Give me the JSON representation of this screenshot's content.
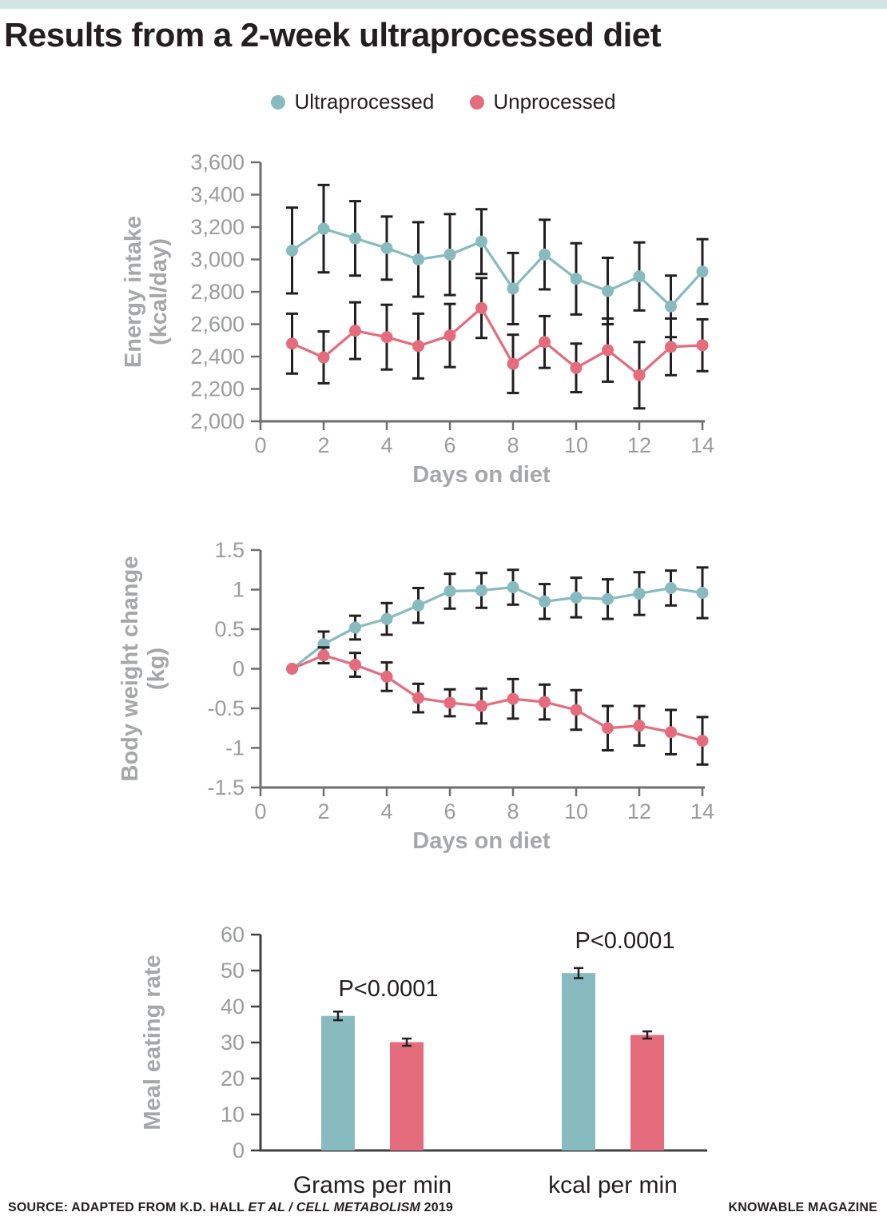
{
  "page": {
    "title": "Results from a 2-week ultraprocessed diet",
    "accent_bar_color": "#D2E5E4",
    "footer": {
      "source_prefix": "SOURCE: ADAPTED FROM K.D. HALL ",
      "source_italic": "ET AL / CELL METABOLISM",
      "source_suffix": " 2019",
      "credit": "KNOWABLE MAGAZINE"
    }
  },
  "colors": {
    "ultraprocessed": "#87BBBF",
    "unprocessed": "#E46C7C",
    "error_bar": "#231F20",
    "axis": "#6D6E71",
    "axis_dark": "#414042"
  },
  "legend": {
    "items": [
      {
        "label": "Ultraprocessed",
        "color": "#87BBBF"
      },
      {
        "label": "Unprocessed",
        "color": "#E46C7C"
      }
    ]
  },
  "chart_data": [
    {
      "type": "line",
      "name": "energy-intake",
      "ylabel": [
        "Energy intake",
        "(kcal/day)"
      ],
      "xlabel": "Days on diet",
      "xlim": [
        0,
        14
      ],
      "ylim": [
        2000,
        3600
      ],
      "x": [
        1,
        2,
        3,
        4,
        5,
        6,
        7,
        8,
        9,
        10,
        11,
        12,
        13,
        14
      ],
      "xticks": [
        0,
        2,
        4,
        6,
        8,
        10,
        12,
        14
      ],
      "yticks": [
        {
          "v": 2000,
          "label": "2,000"
        },
        {
          "v": 2200,
          "label": "2,200"
        },
        {
          "v": 2400,
          "label": "2,400"
        },
        {
          "v": 2600,
          "label": "2,600"
        },
        {
          "v": 2800,
          "label": "2,800"
        },
        {
          "v": 3000,
          "label": "3,000"
        },
        {
          "v": 3200,
          "label": "3,200"
        },
        {
          "v": 3400,
          "label": "3,400"
        },
        {
          "v": 3600,
          "label": "3,600"
        }
      ],
      "series": [
        {
          "name": "Ultraprocessed",
          "color": "#87BBBF",
          "values": [
            3055,
            3190,
            3130,
            3070,
            3000,
            3030,
            3110,
            2820,
            3030,
            2880,
            2805,
            2895,
            2710,
            2925
          ],
          "errors": [
            265,
            270,
            230,
            195,
            230,
            250,
            200,
            220,
            215,
            220,
            205,
            210,
            190,
            200
          ]
        },
        {
          "name": "Unprocessed",
          "color": "#E46C7C",
          "values": [
            2480,
            2395,
            2560,
            2520,
            2465,
            2530,
            2700,
            2355,
            2490,
            2330,
            2440,
            2285,
            2460,
            2470
          ],
          "errors": [
            185,
            160,
            175,
            200,
            200,
            195,
            185,
            180,
            160,
            150,
            195,
            205,
            175,
            160
          ]
        }
      ]
    },
    {
      "type": "line",
      "name": "body-weight-change",
      "ylabel": [
        "Body weight change",
        "(kg)"
      ],
      "xlabel": "Days on diet",
      "xlim": [
        0,
        14
      ],
      "ylim": [
        -1.5,
        1.5
      ],
      "x": [
        1,
        2,
        3,
        4,
        5,
        6,
        7,
        8,
        9,
        10,
        11,
        12,
        13,
        14
      ],
      "xticks": [
        0,
        2,
        4,
        6,
        8,
        10,
        12,
        14
      ],
      "yticks": [
        {
          "v": -1.5,
          "label": "-1.5"
        },
        {
          "v": -1,
          "label": "-1"
        },
        {
          "v": -0.5,
          "label": "-0.5"
        },
        {
          "v": 0,
          "label": "0"
        },
        {
          "v": 0.5,
          "label": "0.5"
        },
        {
          "v": 1,
          "label": "1"
        },
        {
          "v": 1.5,
          "label": "1.5"
        }
      ],
      "series": [
        {
          "name": "Ultraprocessed",
          "color": "#87BBBF",
          "values": [
            0,
            0.31,
            0.52,
            0.63,
            0.8,
            0.98,
            0.99,
            1.03,
            0.85,
            0.9,
            0.88,
            0.95,
            1.02,
            0.96
          ],
          "errors": [
            0,
            0.16,
            0.15,
            0.2,
            0.22,
            0.22,
            0.22,
            0.22,
            0.22,
            0.25,
            0.25,
            0.27,
            0.22,
            0.32
          ]
        },
        {
          "name": "Unprocessed",
          "color": "#E46C7C",
          "values": [
            0,
            0.17,
            0.05,
            -0.1,
            -0.37,
            -0.43,
            -0.47,
            -0.38,
            -0.42,
            -0.52,
            -0.75,
            -0.72,
            -0.8,
            -0.91
          ],
          "errors": [
            0,
            0.1,
            0.15,
            0.18,
            0.18,
            0.17,
            0.22,
            0.25,
            0.22,
            0.25,
            0.28,
            0.25,
            0.28,
            0.3
          ]
        }
      ]
    },
    {
      "type": "bar",
      "name": "meal-eating-rate",
      "ylabel": [
        "Meal eating rate"
      ],
      "categories": [
        "Grams per min",
        "kcal per min"
      ],
      "ylim": [
        0,
        60
      ],
      "yticks": [
        {
          "v": 0,
          "label": "0"
        },
        {
          "v": 10,
          "label": "10"
        },
        {
          "v": 20,
          "label": "20"
        },
        {
          "v": 30,
          "label": "30"
        },
        {
          "v": 40,
          "label": "40"
        },
        {
          "v": 50,
          "label": "50"
        },
        {
          "v": 60,
          "label": "60"
        }
      ],
      "series": [
        {
          "name": "Ultraprocessed",
          "color": "#87BBBF",
          "values": [
            37.4,
            49.3
          ],
          "errors": [
            1.2,
            1.4
          ]
        },
        {
          "name": "Unprocessed",
          "color": "#E46C7C",
          "values": [
            30.1,
            32.1
          ],
          "errors": [
            1.0,
            1.0
          ]
        }
      ],
      "annotations": [
        "P<0.0001",
        "P<0.0001"
      ]
    }
  ]
}
